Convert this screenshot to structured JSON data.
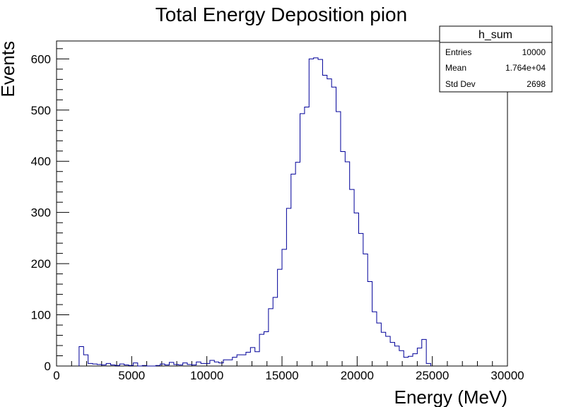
{
  "chart_data": {
    "type": "histogram",
    "title": "Total Energy Deposition pion",
    "xlabel": "Energy (MeV)",
    "ylabel": "Events",
    "xlim": [
      0,
      30000
    ],
    "ylim": [
      0,
      635
    ],
    "xticks": [
      0,
      5000,
      10000,
      15000,
      20000,
      25000,
      30000
    ],
    "yticks": [
      0,
      100,
      200,
      300,
      400,
      500,
      600
    ],
    "bin_width": 300,
    "series": [
      {
        "color": "#000099",
        "bins": [
          {
            "x": 1500,
            "y": 38
          },
          {
            "x": 1800,
            "y": 22
          },
          {
            "x": 2100,
            "y": 5
          },
          {
            "x": 2400,
            "y": 4
          },
          {
            "x": 2700,
            "y": 3
          },
          {
            "x": 3000,
            "y": 2
          },
          {
            "x": 3300,
            "y": 5
          },
          {
            "x": 3600,
            "y": 2
          },
          {
            "x": 3900,
            "y": 1
          },
          {
            "x": 4200,
            "y": 4
          },
          {
            "x": 4500,
            "y": 2
          },
          {
            "x": 4800,
            "y": 1
          },
          {
            "x": 5100,
            "y": 6
          },
          {
            "x": 5400,
            "y": 0
          },
          {
            "x": 5700,
            "y": 1
          },
          {
            "x": 6000,
            "y": 0
          },
          {
            "x": 6300,
            "y": 0
          },
          {
            "x": 6600,
            "y": 1
          },
          {
            "x": 6900,
            "y": 4
          },
          {
            "x": 7200,
            "y": 2
          },
          {
            "x": 7500,
            "y": 7
          },
          {
            "x": 7800,
            "y": 3
          },
          {
            "x": 8100,
            "y": 2
          },
          {
            "x": 8400,
            "y": 6
          },
          {
            "x": 8700,
            "y": 3
          },
          {
            "x": 9000,
            "y": 2
          },
          {
            "x": 9300,
            "y": 8
          },
          {
            "x": 9600,
            "y": 5
          },
          {
            "x": 9900,
            "y": 5
          },
          {
            "x": 10200,
            "y": 11
          },
          {
            "x": 10500,
            "y": 8
          },
          {
            "x": 10800,
            "y": 6
          },
          {
            "x": 11100,
            "y": 12
          },
          {
            "x": 11400,
            "y": 12
          },
          {
            "x": 11700,
            "y": 17
          },
          {
            "x": 12000,
            "y": 22
          },
          {
            "x": 12300,
            "y": 22
          },
          {
            "x": 12600,
            "y": 27
          },
          {
            "x": 12900,
            "y": 36
          },
          {
            "x": 13200,
            "y": 28
          },
          {
            "x": 13500,
            "y": 62
          },
          {
            "x": 13800,
            "y": 67
          },
          {
            "x": 14100,
            "y": 112
          },
          {
            "x": 14400,
            "y": 134
          },
          {
            "x": 14700,
            "y": 189
          },
          {
            "x": 15000,
            "y": 228
          },
          {
            "x": 15300,
            "y": 308
          },
          {
            "x": 15600,
            "y": 375
          },
          {
            "x": 15900,
            "y": 398
          },
          {
            "x": 16200,
            "y": 493
          },
          {
            "x": 16500,
            "y": 506
          },
          {
            "x": 16800,
            "y": 600
          },
          {
            "x": 17100,
            "y": 602
          },
          {
            "x": 17400,
            "y": 599
          },
          {
            "x": 17700,
            "y": 568
          },
          {
            "x": 18000,
            "y": 561
          },
          {
            "x": 18300,
            "y": 545
          },
          {
            "x": 18600,
            "y": 497
          },
          {
            "x": 18900,
            "y": 419
          },
          {
            "x": 19200,
            "y": 399
          },
          {
            "x": 19500,
            "y": 345
          },
          {
            "x": 19800,
            "y": 299
          },
          {
            "x": 20100,
            "y": 259
          },
          {
            "x": 20400,
            "y": 219
          },
          {
            "x": 20700,
            "y": 165
          },
          {
            "x": 21000,
            "y": 106
          },
          {
            "x": 21300,
            "y": 84
          },
          {
            "x": 21600,
            "y": 66
          },
          {
            "x": 21900,
            "y": 58
          },
          {
            "x": 22200,
            "y": 46
          },
          {
            "x": 22500,
            "y": 39
          },
          {
            "x": 22800,
            "y": 30
          },
          {
            "x": 23100,
            "y": 17
          },
          {
            "x": 23400,
            "y": 19
          },
          {
            "x": 23700,
            "y": 24
          },
          {
            "x": 24000,
            "y": 35
          },
          {
            "x": 24300,
            "y": 52
          },
          {
            "x": 24600,
            "y": 5
          }
        ]
      }
    ],
    "stats_box": {
      "name": "h_sum",
      "rows": [
        {
          "label": "Entries",
          "value": "10000"
        },
        {
          "label": "Mean",
          "value": "1.764e+04"
        },
        {
          "label": "Std Dev",
          "value": "2698"
        }
      ]
    },
    "grid": false
  }
}
